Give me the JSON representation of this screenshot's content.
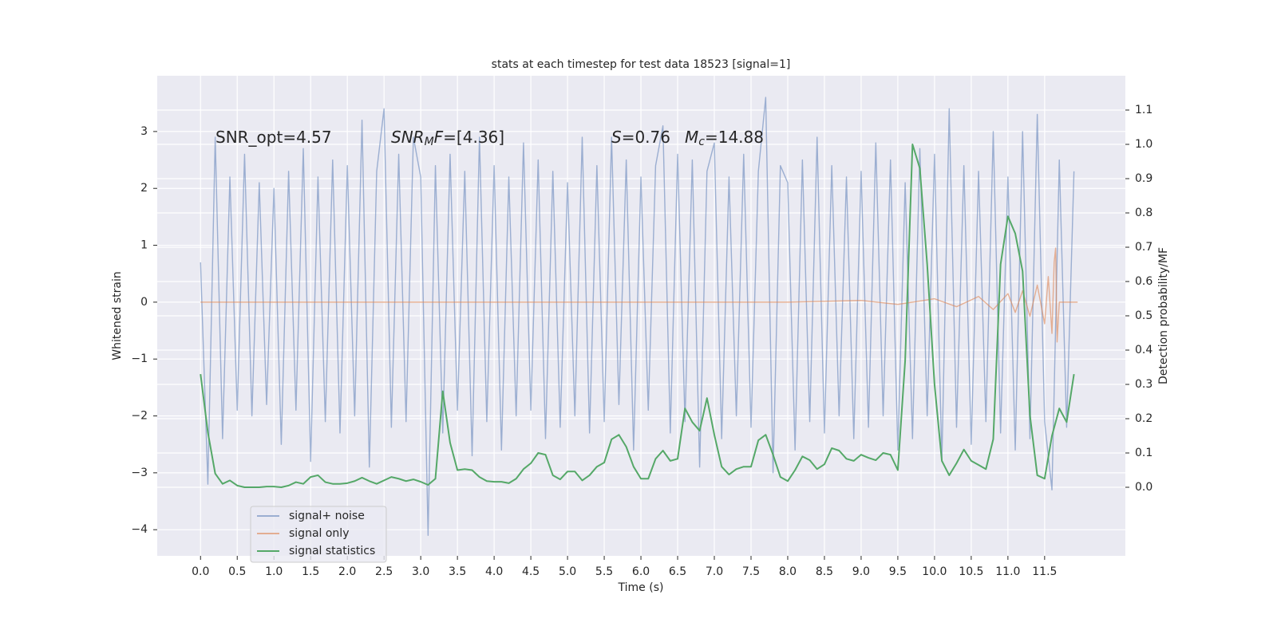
{
  "chart_data": {
    "type": "line",
    "title": "stats at each timestep for test data 18523 [signal=1]",
    "xlabel": "Time (s)",
    "ylabel": "Whitened strain",
    "y2label": "Detection probability/MF",
    "grid": true,
    "legend": "lower left",
    "xlim": [
      -0.59,
      12.6
    ],
    "ylim": [
      -4.46,
      3.98
    ],
    "y2lim": [
      -0.2,
      1.2
    ],
    "xticks": [
      {
        "value": 0,
        "label": "0.0"
      },
      0.5,
      {
        "value": 1,
        "label": "1.0"
      },
      1.5,
      {
        "value": 2,
        "label": "2.0"
      },
      2.5,
      {
        "value": 3,
        "label": "3.0"
      },
      3.5,
      {
        "value": 4,
        "label": "4.0"
      },
      4.5,
      {
        "value": 5,
        "label": "5.0"
      },
      5.5,
      {
        "value": 6,
        "label": "6.0"
      },
      6.5,
      {
        "value": 7,
        "label": "7.0"
      },
      7.5,
      {
        "value": 8,
        "label": "8.0"
      },
      8.5,
      {
        "value": 9,
        "label": "9.0"
      },
      9.5,
      {
        "value": 10,
        "label": "10.0"
      },
      10.5,
      {
        "value": 11,
        "label": "11.0"
      },
      11.5
    ],
    "yticks": [
      {
        "value": -4,
        "label": "−4"
      },
      {
        "value": -3,
        "label": "−3"
      },
      {
        "value": -2,
        "label": "−2"
      },
      {
        "value": -1,
        "label": "−1"
      },
      0,
      1,
      2,
      3
    ],
    "y2ticks": [
      {
        "value": 0,
        "label": "0.0"
      },
      0.1,
      0.2,
      0.3,
      0.4,
      0.5,
      0.6,
      0.7,
      0.8,
      0.9,
      {
        "value": 1,
        "label": "1.0"
      },
      1.1
    ],
    "annotations": [
      [
        {
          "text": "SNR_opt=4.57",
          "style": "normal"
        }
      ],
      [
        {
          "text": "SNR",
          "style": "italic"
        },
        {
          "text": "M",
          "style": "sub"
        },
        {
          "text": "F",
          "style": "italic"
        },
        {
          "text": "=[4.36]",
          "style": "normal"
        }
      ],
      [
        {
          "text": "S",
          "style": "italic"
        },
        {
          "text": "=0.76",
          "style": "normal"
        }
      ],
      [
        {
          "text": "M",
          "style": "italic"
        },
        {
          "text": "c",
          "style": "sub"
        },
        {
          "text": "=14.88",
          "style": "normal"
        }
      ]
    ],
    "x": [
      0,
      0.1,
      0.2,
      0.3,
      0.4,
      0.5,
      0.6,
      0.7,
      0.8,
      0.9,
      1,
      1.1,
      1.2,
      1.3,
      1.4,
      1.5,
      1.6,
      1.7,
      1.8,
      1.9,
      2,
      2.1,
      2.2,
      2.3,
      2.4,
      2.5,
      2.6,
      2.7,
      2.8,
      2.9,
      3,
      3.1,
      3.2,
      3.3,
      3.4,
      3.5,
      3.6,
      3.7,
      3.8,
      3.9,
      4,
      4.1,
      4.2,
      4.3,
      4.4,
      4.5,
      4.6,
      4.7,
      4.8,
      4.9,
      5,
      5.1,
      5.2,
      5.3,
      5.4,
      5.5,
      5.6,
      5.7,
      5.8,
      5.9,
      6,
      6.1,
      6.2,
      6.3,
      6.4,
      6.5,
      6.6,
      6.7,
      6.8,
      6.9,
      7,
      7.1,
      7.2,
      7.3,
      7.4,
      7.5,
      7.6,
      7.7,
      7.8,
      7.9,
      8,
      8.1,
      8.2,
      8.3,
      8.4,
      8.5,
      8.6,
      8.7,
      8.8,
      8.9,
      9,
      9.1,
      9.2,
      9.3,
      9.4,
      9.5,
      9.6,
      9.7,
      9.8,
      9.9,
      10,
      10.1,
      10.2,
      10.3,
      10.4,
      10.5,
      10.6,
      10.7,
      10.8,
      10.9,
      11,
      11.1,
      11.2,
      11.3,
      11.4,
      11.5,
      11.6,
      11.7,
      11.8,
      11.9
    ],
    "series": [
      {
        "name": "signal+ noise",
        "color": "#4c72b0",
        "opacity": 0.5,
        "values": [
          0.7,
          -3.2,
          2.9,
          -2.4,
          2.2,
          -1.9,
          2.6,
          -2.0,
          2.1,
          -1.8,
          2.0,
          -2.5,
          2.3,
          -1.9,
          2.7,
          -2.8,
          2.2,
          -2.1,
          2.5,
          -2.3,
          2.4,
          -2.0,
          3.2,
          -2.9,
          2.3,
          3.4,
          -2.2,
          2.6,
          -2.1,
          2.9,
          2.2,
          -4.1,
          2.4,
          -2.3,
          2.6,
          -1.9,
          2.3,
          -2.7,
          2.9,
          -2.1,
          2.4,
          -2.6,
          2.2,
          -2.0,
          2.8,
          -1.9,
          2.5,
          -2.4,
          2.3,
          -2.2,
          2.1,
          -2.0,
          2.9,
          -2.3,
          2.4,
          -2.1,
          2.9,
          -1.8,
          2.5,
          -2.6,
          2.2,
          -1.9,
          2.4,
          3.1,
          -2.3,
          2.6,
          -2.1,
          2.5,
          -2.9,
          2.3,
          2.8,
          -2.4,
          2.2,
          -2.0,
          2.6,
          -2.2,
          2.3,
          3.6,
          -3.0,
          2.4,
          2.1,
          -2.6,
          2.5,
          -2.1,
          2.9,
          -2.3,
          2.4,
          -2.0,
          2.2,
          -2.4,
          2.3,
          -2.2,
          2.8,
          -2.0,
          2.5,
          -2.6,
          2.1,
          -2.4,
          2.7,
          -2.0,
          2.6,
          -2.8,
          3.4,
          -2.2,
          2.4,
          -2.5,
          2.3,
          -2.1,
          3.0,
          -2.3,
          2.2,
          -2.6,
          3.0,
          -2.4,
          3.3,
          -2.1,
          -3.3,
          2.5,
          -2.2,
          2.3
        ]
      },
      {
        "name": "signal only",
        "color": "#dd8452",
        "opacity": 0.6,
        "x": [
          0,
          8.0,
          9.0,
          9.5,
          10.0,
          10.3,
          10.6,
          10.8,
          11.0,
          11.1,
          11.2,
          11.3,
          11.4,
          11.5,
          11.55,
          11.6,
          11.63,
          11.65,
          11.67,
          11.7,
          11.95
        ],
        "values": [
          0,
          0,
          0.03,
          -0.04,
          0.06,
          -0.08,
          0.1,
          -0.13,
          0.15,
          -0.18,
          0.2,
          -0.25,
          0.3,
          -0.38,
          0.45,
          -0.55,
          0.7,
          0.95,
          -0.7,
          0,
          0
        ]
      },
      {
        "name": "signal statistics",
        "color": "#55a868",
        "opacity": 1,
        "axis": "y2",
        "values": [
          0.33,
          0.16,
          0.04,
          0.01,
          0.02,
          0.005,
          0,
          0,
          0,
          0.002,
          0.002,
          0,
          0.005,
          0.015,
          0.01,
          0.03,
          0.035,
          0.015,
          0.01,
          0.01,
          0.012,
          0.018,
          0.028,
          0.018,
          0.01,
          0.02,
          0.03,
          0.025,
          0.018,
          0.023,
          0.016,
          0.007,
          0.025,
          0.28,
          0.13,
          0.05,
          0.053,
          0.05,
          0.03,
          0.018,
          0.016,
          0.016,
          0.012,
          0.025,
          0.053,
          0.07,
          0.1,
          0.095,
          0.035,
          0.023,
          0.046,
          0.046,
          0.02,
          0.035,
          0.06,
          0.072,
          0.14,
          0.153,
          0.118,
          0.06,
          0.025,
          0.025,
          0.083,
          0.107,
          0.077,
          0.083,
          0.23,
          0.19,
          0.165,
          0.26,
          0.153,
          0.06,
          0.037,
          0.053,
          0.06,
          0.06,
          0.137,
          0.153,
          0.095,
          0.03,
          0.018,
          0.05,
          0.09,
          0.079,
          0.053,
          0.067,
          0.114,
          0.107,
          0.083,
          0.077,
          0.095,
          0.086,
          0.079,
          0.1,
          0.095,
          0.05,
          0.37,
          1.0,
          0.93,
          0.65,
          0.3,
          0.077,
          0.035,
          0.07,
          0.11,
          0.077,
          0.065,
          0.053,
          0.14,
          0.65,
          0.79,
          0.74,
          0.63,
          0.21,
          0.035,
          0.025,
          0.15,
          0.23,
          0.19,
          0.33
        ]
      }
    ]
  }
}
